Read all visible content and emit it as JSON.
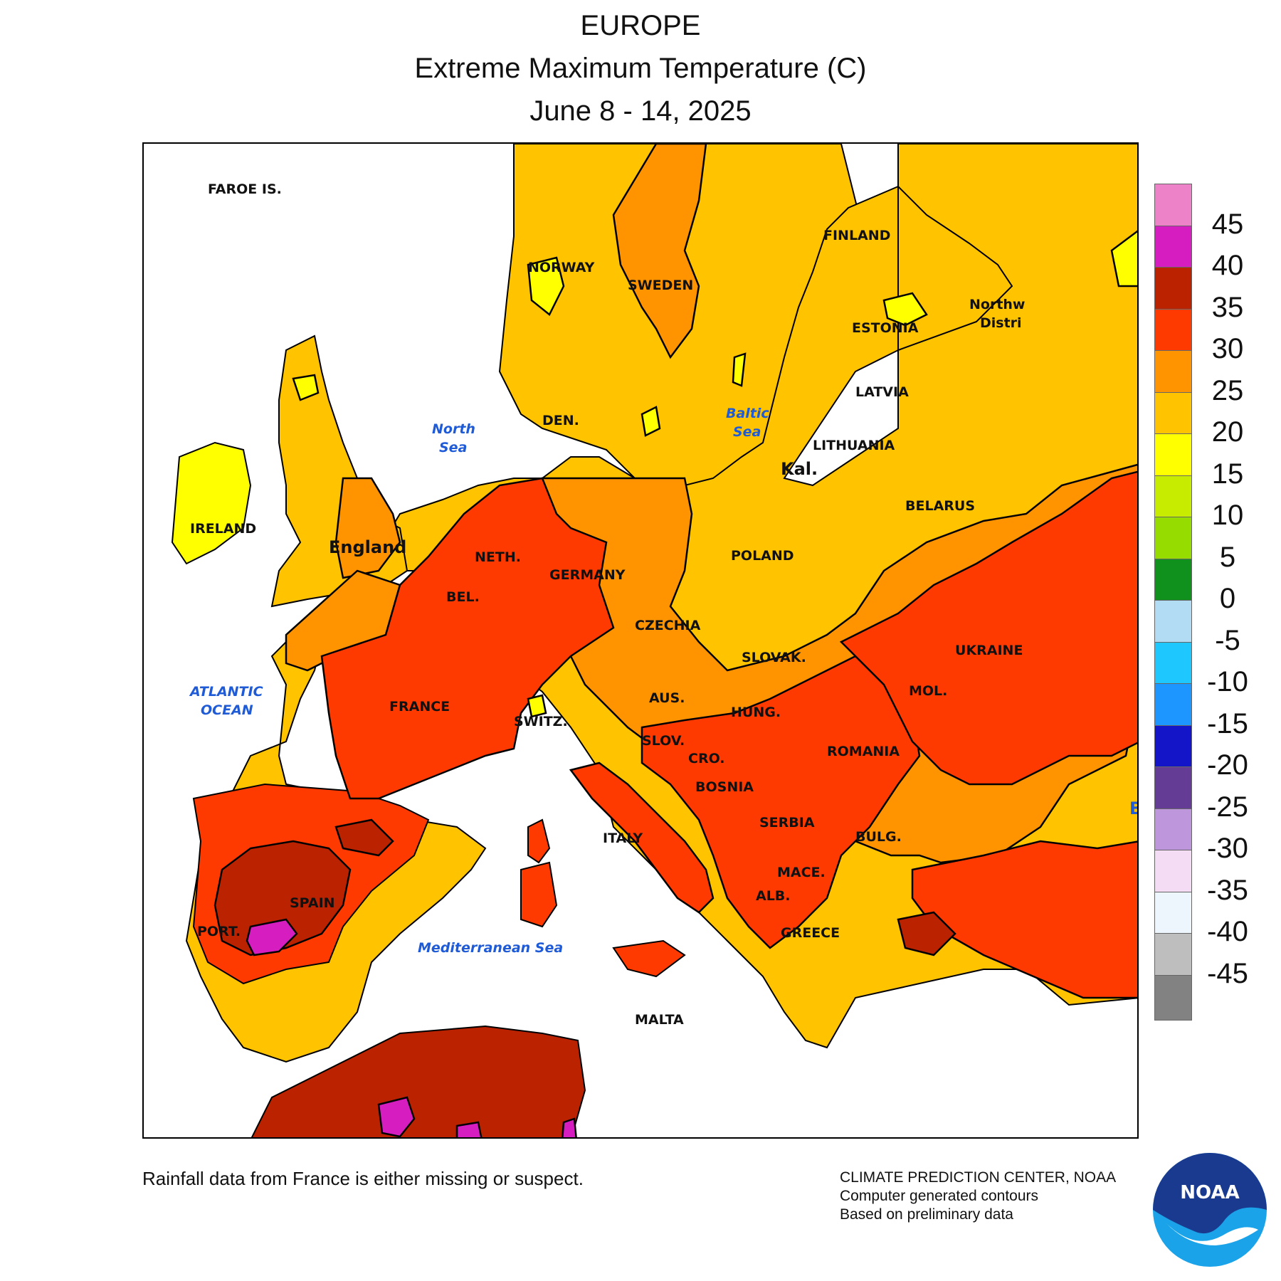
{
  "header": {
    "region": "EUROPE",
    "variable": "Extreme Maximum Temperature (C)",
    "period": "June 8 - 14, 2025"
  },
  "map": {
    "country_labels": [
      "FAROE IS.",
      "NORWAY",
      "SWEDEN",
      "FINLAND",
      "ESTONIA",
      "LATVIA",
      "LITHUANIA",
      "Kal.",
      "DEN.",
      "IRELAND",
      "England",
      "NETH.",
      "BEL.",
      "GERMANY",
      "POLAND",
      "BELARUS",
      "CZECHIA",
      "SLOVAK.",
      "UKRAINE",
      "MOL.",
      "AUS.",
      "HUNG.",
      "SWITZ.",
      "SLOV.",
      "CRO.",
      "ROMANIA",
      "BOSNIA",
      "SERBIA",
      "BULG.",
      "FRANCE",
      "ITALY",
      "MACE.",
      "ALB.",
      "GREECE",
      "SPAIN",
      "PORT.",
      "MALTA",
      "Northw",
      "Distri",
      "B"
    ],
    "sea_labels": [
      "North",
      "Sea",
      "Baltic",
      "Sea",
      "ATLANTIC",
      "OCEAN",
      "Mediterranean Sea"
    ]
  },
  "legend": {
    "title": "",
    "bins": [
      {
        "range": [
          45,
          50
        ],
        "color": "#ee82c8"
      },
      {
        "range": [
          40,
          45
        ],
        "color": "#d61ec0"
      },
      {
        "range": [
          35,
          40
        ],
        "color": "#bb2200"
      },
      {
        "range": [
          30,
          35
        ],
        "color": "#ff3a00"
      },
      {
        "range": [
          25,
          30
        ],
        "color": "#ff9400"
      },
      {
        "range": [
          20,
          25
        ],
        "color": "#ffc300"
      },
      {
        "range": [
          15,
          20
        ],
        "color": "#ffff00"
      },
      {
        "range": [
          10,
          15
        ],
        "color": "#c8ec00"
      },
      {
        "range": [
          5,
          10
        ],
        "color": "#96dc00"
      },
      {
        "range": [
          0,
          5
        ],
        "color": "#10901c"
      },
      {
        "range": [
          -5,
          0
        ],
        "color": "#b2dcf4"
      },
      {
        "range": [
          -10,
          -5
        ],
        "color": "#1ec8ff"
      },
      {
        "range": [
          -15,
          -10
        ],
        "color": "#1e96ff"
      },
      {
        "range": [
          -20,
          -15
        ],
        "color": "#1414c8"
      },
      {
        "range": [
          -25,
          -20
        ],
        "color": "#643c96"
      },
      {
        "range": [
          -30,
          -25
        ],
        "color": "#be96dc"
      },
      {
        "range": [
          -35,
          -30
        ],
        "color": "#f5dcf5"
      },
      {
        "range": [
          -40,
          -35
        ],
        "color": "#ecf6fc"
      },
      {
        "range": [
          -45,
          -40
        ],
        "color": "#bebebe"
      },
      {
        "range": [
          -50,
          -45
        ],
        "color": "#828282"
      }
    ],
    "ticks": [
      "45",
      "40",
      "35",
      "30",
      "25",
      "20",
      "15",
      "10",
      "5",
      "0",
      "-5",
      "-10",
      "-15",
      "-20",
      "-25",
      "-30",
      "-35",
      "-40",
      "-45"
    ]
  },
  "footer": {
    "note": "Rainfall data from France is either missing or suspect.",
    "credit_line1": "CLIMATE PREDICTION CENTER, NOAA",
    "credit_line2": "Computer generated contours",
    "credit_line3": "Based on preliminary data",
    "logo_text": "NOAA"
  }
}
